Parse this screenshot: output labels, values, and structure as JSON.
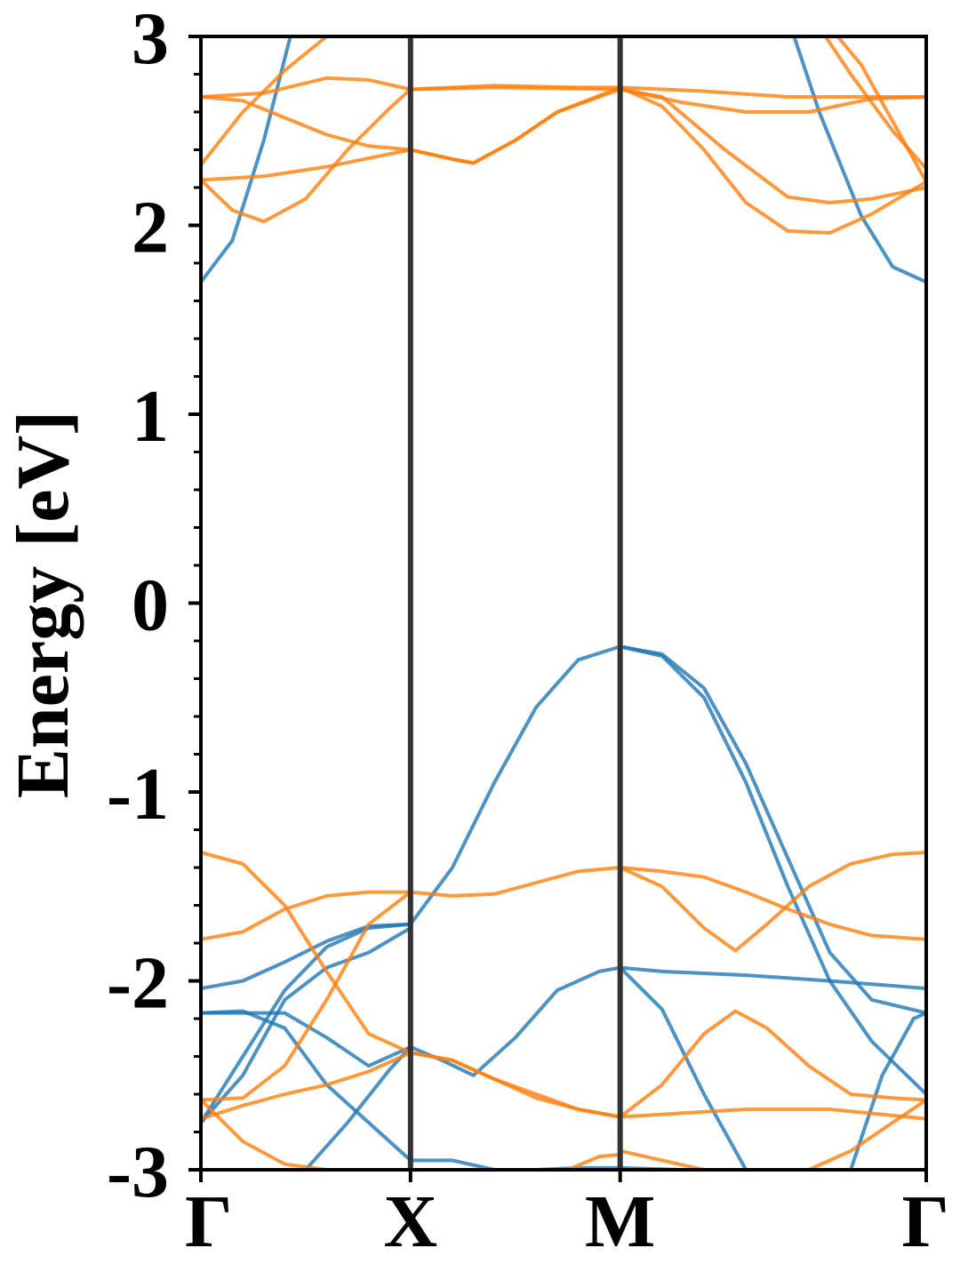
{
  "chart_data": {
    "type": "line",
    "title": "",
    "xlabel": "",
    "ylabel": "Energy [eV]",
    "ylim": [
      -3,
      3
    ],
    "xlim": [
      0,
      3.46
    ],
    "grid": false,
    "legend": "none",
    "colors": {
      "blue": "#1f77b4",
      "orange": "#ff7f0e",
      "kpath_line": "#333333",
      "axis": "#000000"
    },
    "x_ticks": [
      {
        "label": "Γ",
        "x": 0
      },
      {
        "label": "X",
        "x": 1.0
      },
      {
        "label": "M",
        "x": 2.0
      },
      {
        "label": "Γ",
        "x": 3.46
      }
    ],
    "y_ticks": [
      "3",
      "2",
      "1",
      "0",
      "-1",
      "-2",
      "-3"
    ],
    "y_tick_values": [
      3,
      2,
      1,
      0,
      -1,
      -2,
      -3
    ],
    "high_symmetry_lines": [
      1.0,
      2.0
    ],
    "series": [
      {
        "color": "blue",
        "points": [
          [
            0,
            1.7
          ],
          [
            0.15,
            1.92
          ],
          [
            0.3,
            2.45
          ],
          [
            0.45,
            3.1
          ]
        ]
      },
      {
        "color": "blue",
        "points": [
          [
            2.8,
            3.1
          ],
          [
            2.95,
            2.6
          ],
          [
            3.15,
            2.05
          ],
          [
            3.3,
            1.78
          ],
          [
            3.46,
            1.7
          ]
        ]
      },
      {
        "color": "blue",
        "points": [
          [
            0,
            -2.04
          ],
          [
            0.2,
            -2.0
          ],
          [
            0.4,
            -1.9
          ],
          [
            0.6,
            -1.79
          ],
          [
            0.8,
            -1.71
          ],
          [
            1.0,
            -1.7
          ],
          [
            1.2,
            -1.4
          ],
          [
            1.4,
            -0.95
          ],
          [
            1.6,
            -0.55
          ],
          [
            1.8,
            -0.3
          ],
          [
            2.0,
            -0.23
          ],
          [
            2.2,
            -0.28
          ],
          [
            2.4,
            -0.5
          ],
          [
            2.6,
            -0.95
          ],
          [
            2.8,
            -1.5
          ],
          [
            3.0,
            -2.0
          ],
          [
            3.2,
            -2.32
          ],
          [
            3.46,
            -2.6
          ]
        ]
      },
      {
        "color": "blue",
        "points": [
          [
            2.0,
            -0.23
          ],
          [
            2.2,
            -0.27
          ],
          [
            2.4,
            -0.45
          ],
          [
            2.6,
            -0.85
          ],
          [
            2.8,
            -1.35
          ],
          [
            3.0,
            -1.85
          ],
          [
            3.2,
            -2.1
          ],
          [
            3.46,
            -2.17
          ]
        ]
      },
      {
        "color": "blue",
        "points": [
          [
            0,
            -2.17
          ],
          [
            0.2,
            -2.16
          ],
          [
            0.4,
            -2.25
          ],
          [
            0.6,
            -2.55
          ],
          [
            0.8,
            -2.75
          ],
          [
            1.0,
            -2.95
          ],
          [
            1.2,
            -2.95
          ],
          [
            1.4,
            -3.0
          ],
          [
            1.6,
            -3.0
          ],
          [
            1.8,
            -2.99
          ],
          [
            2.0,
            -2.99
          ],
          [
            2.3,
            -3.0
          ],
          [
            2.6,
            -3.0
          ]
        ]
      },
      {
        "color": "blue",
        "points": [
          [
            0,
            -2.75
          ],
          [
            0.2,
            -2.4
          ],
          [
            0.4,
            -2.05
          ],
          [
            0.6,
            -1.82
          ],
          [
            0.8,
            -1.72
          ],
          [
            1.0,
            -1.7
          ]
        ]
      },
      {
        "color": "blue",
        "points": [
          [
            0,
            -2.75
          ],
          [
            0.2,
            -2.5
          ],
          [
            0.4,
            -2.1
          ],
          [
            0.6,
            -1.93
          ],
          [
            0.8,
            -1.85
          ],
          [
            1.0,
            -1.72
          ]
        ]
      },
      {
        "color": "blue",
        "points": [
          [
            0.5,
            -3.0
          ],
          [
            0.7,
            -2.75
          ],
          [
            0.9,
            -2.47
          ],
          [
            1.0,
            -2.35
          ],
          [
            1.15,
            -2.42
          ],
          [
            1.3,
            -2.5
          ],
          [
            1.5,
            -2.3
          ],
          [
            1.7,
            -2.05
          ],
          [
            1.9,
            -1.95
          ],
          [
            2.0,
            -1.93
          ],
          [
            2.2,
            -1.95
          ],
          [
            2.6,
            -1.97
          ],
          [
            3.0,
            -2.0
          ],
          [
            3.46,
            -2.04
          ]
        ]
      },
      {
        "color": "blue",
        "points": [
          [
            2.0,
            -1.93
          ],
          [
            2.2,
            -2.15
          ],
          [
            2.4,
            -2.6
          ],
          [
            2.6,
            -3.0
          ]
        ]
      },
      {
        "color": "blue",
        "points": [
          [
            3.1,
            -3.0
          ],
          [
            3.25,
            -2.5
          ],
          [
            3.4,
            -2.2
          ],
          [
            3.46,
            -2.17
          ]
        ]
      },
      {
        "color": "blue",
        "points": [
          [
            0,
            -2.17
          ],
          [
            0.2,
            -2.17
          ],
          [
            0.4,
            -2.17
          ],
          [
            0.6,
            -2.3
          ],
          [
            0.8,
            -2.45
          ],
          [
            1.0,
            -2.35
          ]
        ]
      },
      {
        "color": "orange",
        "points": [
          [
            0,
            2.68
          ],
          [
            0.2,
            2.66
          ],
          [
            0.4,
            2.57
          ],
          [
            0.6,
            2.48
          ],
          [
            0.8,
            2.42
          ],
          [
            1.0,
            2.4
          ],
          [
            1.2,
            2.35
          ],
          [
            1.3,
            2.33
          ],
          [
            1.5,
            2.45
          ],
          [
            1.7,
            2.6
          ],
          [
            2.0,
            2.73
          ],
          [
            2.2,
            2.63
          ],
          [
            2.4,
            2.4
          ],
          [
            2.6,
            2.12
          ],
          [
            2.8,
            1.97
          ],
          [
            3.0,
            1.96
          ],
          [
            3.2,
            2.06
          ],
          [
            3.46,
            2.23
          ]
        ]
      },
      {
        "color": "orange",
        "points": [
          [
            0,
            2.24
          ],
          [
            0.3,
            2.26
          ],
          [
            0.6,
            2.31
          ],
          [
            1.0,
            2.4
          ],
          [
            1.2,
            2.35
          ],
          [
            1.3,
            2.33
          ],
          [
            1.5,
            2.45
          ],
          [
            1.7,
            2.6
          ],
          [
            2.0,
            2.72
          ],
          [
            2.2,
            2.68
          ],
          [
            2.5,
            2.4
          ],
          [
            2.8,
            2.15
          ],
          [
            3.0,
            2.12
          ],
          [
            3.2,
            2.14
          ],
          [
            3.46,
            2.2
          ]
        ]
      },
      {
        "color": "orange",
        "points": [
          [
            0,
            2.68
          ],
          [
            0.3,
            2.7
          ],
          [
            0.6,
            2.78
          ],
          [
            0.8,
            2.77
          ],
          [
            1.0,
            2.72
          ],
          [
            1.4,
            2.74
          ],
          [
            1.8,
            2.73
          ],
          [
            2.0,
            2.73
          ],
          [
            2.4,
            2.71
          ],
          [
            2.8,
            2.68
          ],
          [
            3.2,
            2.68
          ],
          [
            3.46,
            2.68
          ]
        ]
      },
      {
        "color": "orange",
        "points": [
          [
            1.0,
            2.72
          ],
          [
            1.4,
            2.73
          ],
          [
            2.0,
            2.72
          ],
          [
            2.3,
            2.65
          ],
          [
            2.6,
            2.6
          ],
          [
            2.9,
            2.6
          ],
          [
            3.2,
            2.67
          ],
          [
            3.46,
            2.68
          ]
        ]
      },
      {
        "color": "orange",
        "points": [
          [
            0,
            2.32
          ],
          [
            0.2,
            2.6
          ],
          [
            0.4,
            2.82
          ],
          [
            0.6,
            3.0
          ]
        ]
      },
      {
        "color": "orange",
        "points": [
          [
            0,
            2.24
          ],
          [
            0.15,
            2.08
          ],
          [
            0.3,
            2.02
          ],
          [
            0.5,
            2.14
          ],
          [
            0.7,
            2.4
          ],
          [
            0.9,
            2.62
          ],
          [
            1.0,
            2.72
          ]
        ]
      },
      {
        "color": "orange",
        "points": [
          [
            2.95,
            3.05
          ],
          [
            3.1,
            2.8
          ],
          [
            3.3,
            2.5
          ],
          [
            3.46,
            2.3
          ]
        ]
      },
      {
        "color": "orange",
        "points": [
          [
            3.0,
            3.05
          ],
          [
            3.15,
            2.85
          ],
          [
            3.35,
            2.45
          ],
          [
            3.46,
            2.23
          ]
        ]
      },
      {
        "color": "orange",
        "points": [
          [
            0,
            -1.32
          ],
          [
            0.2,
            -1.38
          ],
          [
            0.4,
            -1.6
          ],
          [
            0.6,
            -1.95
          ],
          [
            0.8,
            -2.28
          ],
          [
            1.0,
            -2.38
          ],
          [
            1.2,
            -2.42
          ],
          [
            1.4,
            -2.52
          ],
          [
            1.6,
            -2.6
          ],
          [
            1.8,
            -2.68
          ],
          [
            2.0,
            -2.72
          ],
          [
            2.3,
            -2.7
          ],
          [
            2.6,
            -2.68
          ],
          [
            3.0,
            -2.68
          ],
          [
            3.46,
            -2.73
          ]
        ]
      },
      {
        "color": "orange",
        "points": [
          [
            0,
            -1.78
          ],
          [
            0.2,
            -1.74
          ],
          [
            0.4,
            -1.62
          ],
          [
            0.6,
            -1.55
          ],
          [
            0.8,
            -1.53
          ],
          [
            1.0,
            -1.53
          ],
          [
            1.2,
            -1.55
          ],
          [
            1.4,
            -1.54
          ],
          [
            1.6,
            -1.48
          ],
          [
            1.8,
            -1.42
          ],
          [
            2.0,
            -1.4
          ],
          [
            2.2,
            -1.42
          ],
          [
            2.4,
            -1.45
          ],
          [
            2.6,
            -1.53
          ],
          [
            2.8,
            -1.62
          ],
          [
            3.0,
            -1.7
          ],
          [
            3.2,
            -1.76
          ],
          [
            3.46,
            -1.78
          ]
        ]
      },
      {
        "color": "orange",
        "points": [
          [
            0,
            -2.63
          ],
          [
            0.2,
            -2.62
          ],
          [
            0.4,
            -2.45
          ],
          [
            0.6,
            -2.1
          ],
          [
            0.8,
            -1.7
          ],
          [
            1.0,
            -1.53
          ]
        ]
      },
      {
        "color": "orange",
        "points": [
          [
            0,
            -2.73
          ],
          [
            0.2,
            -2.66
          ],
          [
            0.4,
            -2.6
          ],
          [
            0.6,
            -2.55
          ],
          [
            0.8,
            -2.48
          ],
          [
            1.0,
            -2.38
          ],
          [
            1.2,
            -2.42
          ],
          [
            1.4,
            -2.52
          ],
          [
            1.6,
            -2.62
          ],
          [
            1.8,
            -2.68
          ],
          [
            2.0,
            -2.72
          ]
        ]
      },
      {
        "color": "orange",
        "points": [
          [
            0,
            -2.63
          ],
          [
            0.2,
            -2.85
          ],
          [
            0.4,
            -2.97
          ],
          [
            0.6,
            -3.0
          ],
          [
            0.8,
            -3.0
          ],
          [
            1.0,
            -3.0
          ]
        ]
      },
      {
        "color": "orange",
        "points": [
          [
            2.0,
            -1.4
          ],
          [
            2.2,
            -1.5
          ],
          [
            2.4,
            -1.72
          ],
          [
            2.55,
            -1.84
          ],
          [
            2.7,
            -1.7
          ],
          [
            2.9,
            -1.5
          ],
          [
            3.1,
            -1.38
          ],
          [
            3.3,
            -1.33
          ],
          [
            3.46,
            -1.32
          ]
        ]
      },
      {
        "color": "orange",
        "points": [
          [
            2.0,
            -2.72
          ],
          [
            2.2,
            -2.55
          ],
          [
            2.4,
            -2.28
          ],
          [
            2.55,
            -2.16
          ],
          [
            2.7,
            -2.25
          ],
          [
            2.9,
            -2.45
          ],
          [
            3.1,
            -2.6
          ],
          [
            3.3,
            -2.62
          ],
          [
            3.46,
            -2.63
          ]
        ]
      },
      {
        "color": "orange",
        "points": [
          [
            2.0,
            -2.9
          ],
          [
            2.2,
            -2.95
          ],
          [
            2.4,
            -3.0
          ]
        ]
      },
      {
        "color": "orange",
        "points": [
          [
            1.75,
            -3.0
          ],
          [
            1.9,
            -2.93
          ],
          [
            2.0,
            -2.92
          ]
        ]
      },
      {
        "color": "orange",
        "points": [
          [
            2.9,
            -3.0
          ],
          [
            3.1,
            -2.9
          ],
          [
            3.3,
            -2.75
          ],
          [
            3.46,
            -2.63
          ]
        ]
      }
    ]
  }
}
